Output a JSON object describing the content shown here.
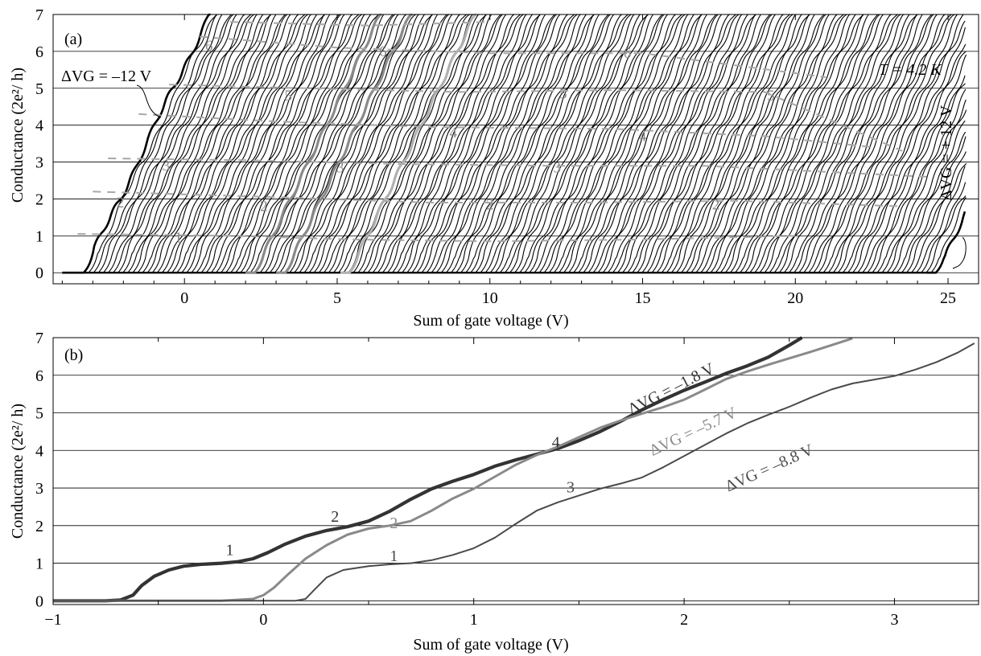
{
  "chart_data": [
    {
      "panel": "(a)",
      "type": "line",
      "xlabel": "Sum of gate voltage (V)",
      "ylabel": "Conductance (2e²/ h)",
      "xlim": [
        -4.3,
        26
      ],
      "ylim": [
        -0.3,
        7
      ],
      "xticks": [
        0,
        5,
        10,
        15,
        20,
        25
      ],
      "yticks": [
        0,
        1,
        2,
        3,
        4,
        5,
        6,
        7
      ],
      "grid": "horizontal",
      "n_traces": 175,
      "trace_onset_first": -3.3,
      "trace_onset_last": 24.6,
      "trace_slope": 1.7,
      "annotations": {
        "temperature": "T = 4.2 K",
        "left_trace": "ΔVG = –12 V",
        "right_trace": "ΔVG = + 12 V"
      },
      "plateau_labels": [
        "1",
        "2",
        "2",
        "2",
        "2",
        "3",
        "3",
        "3",
        "4",
        "4",
        "5",
        "5",
        "5",
        "6",
        "6",
        "6"
      ],
      "highlighted_traces": [
        {
          "onset": 2.3,
          "color": "#8a8a8a"
        },
        {
          "onset": 3.3,
          "color": "#8a8a8a"
        },
        {
          "onset": 5.4,
          "color": "#b0b0b0"
        }
      ]
    },
    {
      "panel": "(b)",
      "type": "line",
      "xlabel": "Sum of gate voltage (V)",
      "ylabel": "Conductance (2e²/ h)",
      "xlim": [
        -1,
        3.4
      ],
      "ylim": [
        -0.1,
        7
      ],
      "xticks": [
        -1,
        0,
        1,
        2,
        3
      ],
      "yticks": [
        0,
        1,
        2,
        3,
        4,
        5,
        6,
        7
      ],
      "grid": "horizontal",
      "series": [
        {
          "name": "ΔVG = –1.8 V",
          "color": "#333333",
          "points": [
            [
              -1.0,
              0
            ],
            [
              -0.75,
              0
            ],
            [
              -0.68,
              0.02
            ],
            [
              -0.62,
              0.15
            ],
            [
              -0.58,
              0.4
            ],
            [
              -0.52,
              0.65
            ],
            [
              -0.45,
              0.82
            ],
            [
              -0.38,
              0.92
            ],
            [
              -0.3,
              0.97
            ],
            [
              -0.2,
              1.0
            ],
            [
              -0.12,
              1.04
            ],
            [
              -0.05,
              1.12
            ],
            [
              0.02,
              1.28
            ],
            [
              0.1,
              1.5
            ],
            [
              0.2,
              1.72
            ],
            [
              0.3,
              1.87
            ],
            [
              0.4,
              1.97
            ],
            [
              0.5,
              2.12
            ],
            [
              0.6,
              2.38
            ],
            [
              0.7,
              2.7
            ],
            [
              0.8,
              2.98
            ],
            [
              0.9,
              3.18
            ],
            [
              1.0,
              3.36
            ],
            [
              1.1,
              3.58
            ],
            [
              1.2,
              3.75
            ],
            [
              1.3,
              3.9
            ],
            [
              1.4,
              4.05
            ],
            [
              1.5,
              4.26
            ],
            [
              1.6,
              4.5
            ],
            [
              1.7,
              4.78
            ],
            [
              1.8,
              5.08
            ],
            [
              1.9,
              5.35
            ],
            [
              2.0,
              5.6
            ],
            [
              2.1,
              5.82
            ],
            [
              2.2,
              6.05
            ],
            [
              2.3,
              6.25
            ],
            [
              2.4,
              6.48
            ],
            [
              2.5,
              6.8
            ],
            [
              2.56,
              7.0
            ]
          ]
        },
        {
          "name": "ΔVG = –5.7 V",
          "color": "#8a8a8a",
          "points": [
            [
              -1.0,
              0
            ],
            [
              -0.2,
              0
            ],
            [
              -0.05,
              0.05
            ],
            [
              0.0,
              0.15
            ],
            [
              0.05,
              0.35
            ],
            [
              0.12,
              0.72
            ],
            [
              0.2,
              1.12
            ],
            [
              0.3,
              1.48
            ],
            [
              0.4,
              1.76
            ],
            [
              0.5,
              1.92
            ],
            [
              0.6,
              2.0
            ],
            [
              0.7,
              2.12
            ],
            [
              0.8,
              2.4
            ],
            [
              0.9,
              2.72
            ],
            [
              1.0,
              2.98
            ],
            [
              1.1,
              3.3
            ],
            [
              1.2,
              3.62
            ],
            [
              1.3,
              3.88
            ],
            [
              1.4,
              4.1
            ],
            [
              1.5,
              4.35
            ],
            [
              1.6,
              4.6
            ],
            [
              1.7,
              4.8
            ],
            [
              1.8,
              4.98
            ],
            [
              1.9,
              5.15
            ],
            [
              2.0,
              5.35
            ],
            [
              2.1,
              5.62
            ],
            [
              2.2,
              5.9
            ],
            [
              2.3,
              6.1
            ],
            [
              2.4,
              6.28
            ],
            [
              2.5,
              6.45
            ],
            [
              2.6,
              6.62
            ],
            [
              2.7,
              6.8
            ],
            [
              2.8,
              6.98
            ]
          ]
        },
        {
          "name": "ΔVG = –8.8 V",
          "color": "#4a4a4a",
          "points": [
            [
              -1.0,
              0
            ],
            [
              0.15,
              0
            ],
            [
              0.2,
              0.05
            ],
            [
              0.24,
              0.28
            ],
            [
              0.3,
              0.62
            ],
            [
              0.38,
              0.82
            ],
            [
              0.5,
              0.92
            ],
            [
              0.6,
              0.97
            ],
            [
              0.7,
              1.0
            ],
            [
              0.8,
              1.08
            ],
            [
              0.9,
              1.22
            ],
            [
              1.0,
              1.4
            ],
            [
              1.1,
              1.68
            ],
            [
              1.2,
              2.05
            ],
            [
              1.3,
              2.4
            ],
            [
              1.4,
              2.62
            ],
            [
              1.5,
              2.8
            ],
            [
              1.6,
              2.98
            ],
            [
              1.7,
              3.12
            ],
            [
              1.8,
              3.28
            ],
            [
              1.9,
              3.55
            ],
            [
              2.0,
              3.85
            ],
            [
              2.1,
              4.15
            ],
            [
              2.2,
              4.45
            ],
            [
              2.3,
              4.72
            ],
            [
              2.4,
              4.95
            ],
            [
              2.5,
              5.16
            ],
            [
              2.6,
              5.4
            ],
            [
              2.7,
              5.62
            ],
            [
              2.8,
              5.78
            ],
            [
              2.9,
              5.88
            ],
            [
              3.0,
              5.98
            ],
            [
              3.1,
              6.15
            ],
            [
              3.2,
              6.35
            ],
            [
              3.3,
              6.6
            ],
            [
              3.38,
              6.85
            ]
          ]
        }
      ],
      "plateau_labels": [
        {
          "text": "1",
          "series": 0
        },
        {
          "text": "2",
          "series": 0
        },
        {
          "text": "4",
          "series": 0
        },
        {
          "text": "2",
          "series": 1
        },
        {
          "text": "1",
          "series": 2
        },
        {
          "text": "3",
          "series": 2
        }
      ]
    }
  ]
}
